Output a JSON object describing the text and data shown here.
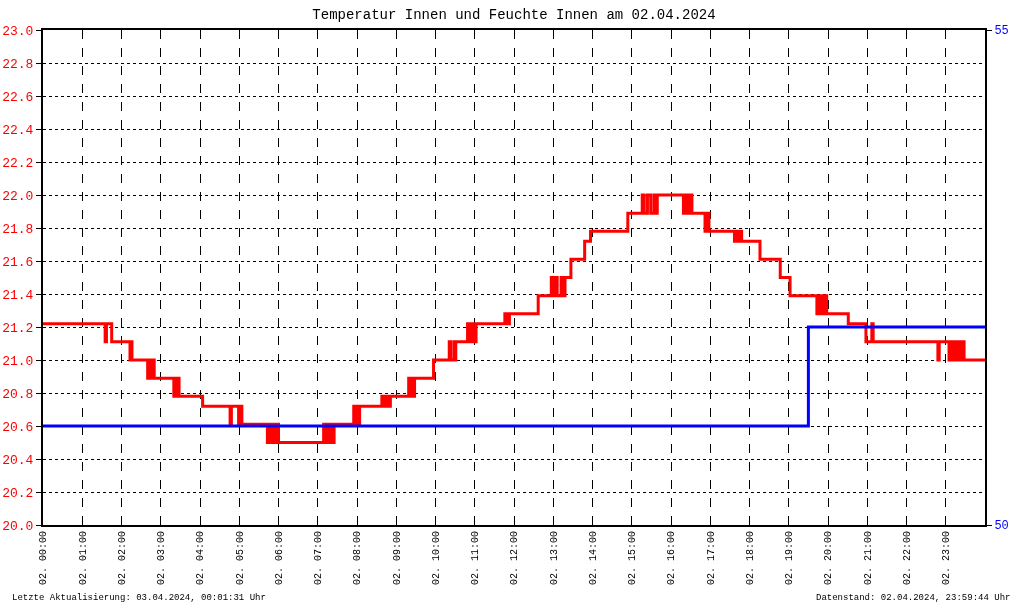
{
  "chart_data": {
    "type": "step",
    "title": "Temperatur Innen und Feuchte Innen am 02.04.2024",
    "annotations": [
      "Letzte Aktualisierung: 03.04.2024, 00:01:31 Uhr",
      "Datenstand: 02.04.2024, 23:59:44 Uhr"
    ],
    "xlim": [
      "2024-04-02T00:00",
      "2024-04-03T00:00"
    ],
    "xticks": [
      {
        "value": "2024-04-02T00:00",
        "label": "02. 00:00"
      },
      {
        "value": "2024-04-02T01:00",
        "label": "02. 01:00"
      },
      {
        "value": "2024-04-02T02:00",
        "label": "02. 02:00"
      },
      {
        "value": "2024-04-02T03:00",
        "label": "02. 03:00"
      },
      {
        "value": "2024-04-02T04:00",
        "label": "02. 04:00"
      },
      {
        "value": "2024-04-02T05:00",
        "label": "02. 05:00"
      },
      {
        "value": "2024-04-02T06:00",
        "label": "02. 06:00"
      },
      {
        "value": "2024-04-02T07:00",
        "label": "02. 07:00"
      },
      {
        "value": "2024-04-02T08:00",
        "label": "02. 08:00"
      },
      {
        "value": "2024-04-02T09:00",
        "label": "02. 09:00"
      },
      {
        "value": "2024-04-02T10:00",
        "label": "02. 10:00"
      },
      {
        "value": "2024-04-02T11:00",
        "label": "02. 11:00"
      },
      {
        "value": "2024-04-02T12:00",
        "label": "02. 12:00"
      },
      {
        "value": "2024-04-02T13:00",
        "label": "02. 13:00"
      },
      {
        "value": "2024-04-02T14:00",
        "label": "02. 14:00"
      },
      {
        "value": "2024-04-02T15:00",
        "label": "02. 15:00"
      },
      {
        "value": "2024-04-02T16:00",
        "label": "02. 16:00"
      },
      {
        "value": "2024-04-02T17:00",
        "label": "02. 17:00"
      },
      {
        "value": "2024-04-02T18:00",
        "label": "02. 18:00"
      },
      {
        "value": "2024-04-02T19:00",
        "label": "02. 19:00"
      },
      {
        "value": "2024-04-02T20:00",
        "label": "02. 20:00"
      },
      {
        "value": "2024-04-02T21:00",
        "label": "02. 21:00"
      },
      {
        "value": "2024-04-02T22:00",
        "label": "02. 22:00"
      },
      {
        "value": "2024-04-02T23:00",
        "label": "02. 23:00"
      }
    ],
    "ylim": [
      20,
      23
    ],
    "yticks": [
      {
        "value": 20,
        "label": "20.0"
      },
      20.2,
      20.4,
      20.6,
      20.8,
      {
        "value": 21,
        "label": "21.0"
      },
      21.2,
      21.4,
      21.6,
      21.8,
      {
        "value": 22,
        "label": "22.0"
      },
      22.2,
      22.4,
      22.6,
      22.8,
      {
        "value": 23,
        "label": "23.0"
      }
    ],
    "y2lim": [
      50,
      55
    ],
    "y2ticks": [
      50,
      55
    ],
    "grid": true,
    "series": [
      {
        "color": "#ff0000",
        "x": [
          "2024-04-02T00:00",
          "2024-04-02T01:35",
          "2024-04-02T01:37",
          "2024-04-02T01:45",
          "2024-04-02T02:13",
          "2024-04-02T02:15",
          "2024-04-02T02:16",
          "2024-04-02T02:40",
          "2024-04-02T02:42",
          "2024-04-02T02:44",
          "2024-04-02T02:47",
          "2024-04-02T02:50",
          "2024-04-02T03:20",
          "2024-04-02T03:22",
          "2024-04-02T03:25",
          "2024-04-02T03:26",
          "2024-04-02T03:28",
          "2024-04-02T04:04",
          "2024-04-02T04:46",
          "2024-04-02T04:48",
          "2024-04-02T04:59",
          "2024-04-02T05:01",
          "2024-04-02T05:04",
          "2024-04-02T05:43",
          "2024-04-02T05:46",
          "2024-04-02T05:48",
          "2024-04-02T05:51",
          "2024-04-02T05:54",
          "2024-04-02T05:57",
          "2024-04-02T06:00",
          "2024-04-02T07:09",
          "2024-04-02T07:12",
          "2024-04-02T07:15",
          "2024-04-02T07:18",
          "2024-04-02T07:21",
          "2024-04-02T07:23",
          "2024-04-02T07:25",
          "2024-04-02T07:55",
          "2024-04-02T07:58",
          "2024-04-02T08:00",
          "2024-04-02T08:02",
          "2024-04-02T08:04",
          "2024-04-02T08:38",
          "2024-04-02T08:42",
          "2024-04-02T08:45",
          "2024-04-02T08:48",
          "2024-04-02T08:51",
          "2024-04-02T09:19",
          "2024-04-02T09:21",
          "2024-04-02T09:23",
          "2024-04-02T09:26",
          "2024-04-02T09:28",
          "2024-04-02T09:57",
          "2024-04-02T10:21",
          "2024-04-02T10:23",
          "2024-04-02T10:28",
          "2024-04-02T10:29",
          "2024-04-02T10:31",
          "2024-04-02T10:49",
          "2024-04-02T10:52",
          "2024-04-02T10:55",
          "2024-04-02T10:58",
          "2024-04-02T11:02",
          "2024-04-02T11:46",
          "2024-04-02T11:49",
          "2024-04-02T11:53",
          "2024-04-02T12:37",
          "2024-04-02T12:57",
          "2024-04-02T13:00",
          "2024-04-02T13:03",
          "2024-04-02T13:06",
          "2024-04-02T13:12",
          "2024-04-02T13:15",
          "2024-04-02T13:18",
          "2024-04-02T13:27",
          "2024-04-02T13:48",
          "2024-04-02T13:57",
          "2024-04-02T14:54",
          "2024-04-02T15:16",
          "2024-04-02T15:19",
          "2024-04-02T15:24",
          "2024-04-02T15:29",
          "2024-04-02T15:34",
          "2024-04-02T15:36",
          "2024-04-02T15:39",
          "2024-04-02T16:19",
          "2024-04-02T16:23",
          "2024-04-02T16:26",
          "2024-04-02T16:30",
          "2024-04-02T16:32",
          "2024-04-02T16:52",
          "2024-04-02T16:55",
          "2024-04-02T16:58",
          "2024-04-02T17:37",
          "2024-04-02T17:40",
          "2024-04-02T17:43",
          "2024-04-02T17:46",
          "2024-04-02T17:48",
          "2024-04-02T18:16",
          "2024-04-02T18:47",
          "2024-04-02T19:02",
          "2024-04-02T19:43",
          "2024-04-02T19:47",
          "2024-04-02T19:50",
          "2024-04-02T19:54",
          "2024-04-02T19:58",
          "2024-04-02T20:31",
          "2024-04-02T20:58",
          "2024-04-02T21:07",
          "2024-04-02T21:09",
          "2024-04-02T22:48",
          "2024-04-02T22:50",
          "2024-04-02T23:05",
          "2024-04-02T23:08",
          "2024-04-02T23:12",
          "2024-04-02T23:16",
          "2024-04-02T23:20",
          "2024-04-02T23:24",
          "2024-04-02T23:28",
          "2024-04-03T00:00"
        ],
        "values": [
          21.22,
          21.11,
          21.22,
          21.11,
          21.0,
          21.11,
          21.0,
          20.89,
          21.0,
          20.89,
          21.0,
          20.89,
          20.78,
          20.89,
          20.78,
          20.89,
          20.78,
          20.72,
          20.61,
          20.72,
          20.61,
          20.72,
          20.61,
          20.5,
          20.61,
          20.5,
          20.61,
          20.5,
          20.61,
          20.5,
          20.61,
          20.5,
          20.61,
          20.5,
          20.61,
          20.5,
          20.61,
          20.72,
          20.61,
          20.72,
          20.61,
          20.72,
          20.78,
          20.72,
          20.78,
          20.72,
          20.78,
          20.89,
          20.78,
          20.89,
          20.78,
          20.89,
          21.0,
          21.11,
          21.0,
          21.11,
          21.0,
          21.11,
          21.22,
          21.11,
          21.22,
          21.11,
          21.22,
          21.28,
          21.22,
          21.28,
          21.39,
          21.5,
          21.39,
          21.5,
          21.39,
          21.5,
          21.39,
          21.5,
          21.61,
          21.72,
          21.78,
          21.89,
          22.0,
          21.89,
          22.0,
          21.89,
          22.0,
          21.89,
          22.0,
          21.89,
          22.0,
          21.89,
          22.0,
          21.89,
          21.78,
          21.89,
          21.78,
          21.72,
          21.78,
          21.72,
          21.78,
          21.72,
          21.61,
          21.5,
          21.39,
          21.28,
          21.39,
          21.28,
          21.39,
          21.28,
          21.22,
          21.11,
          21.22,
          21.11,
          21.0,
          21.11,
          21.0,
          21.11,
          21.0,
          21.11,
          21.0,
          21.11,
          21.0,
          21.0
        ]
      },
      {
        "color": "#0000ff",
        "axis": "y2",
        "x": [
          "2024-04-02T00:00",
          "2024-04-02T19:30",
          "2024-04-03T00:00"
        ],
        "values": [
          51,
          52,
          52
        ]
      }
    ]
  }
}
